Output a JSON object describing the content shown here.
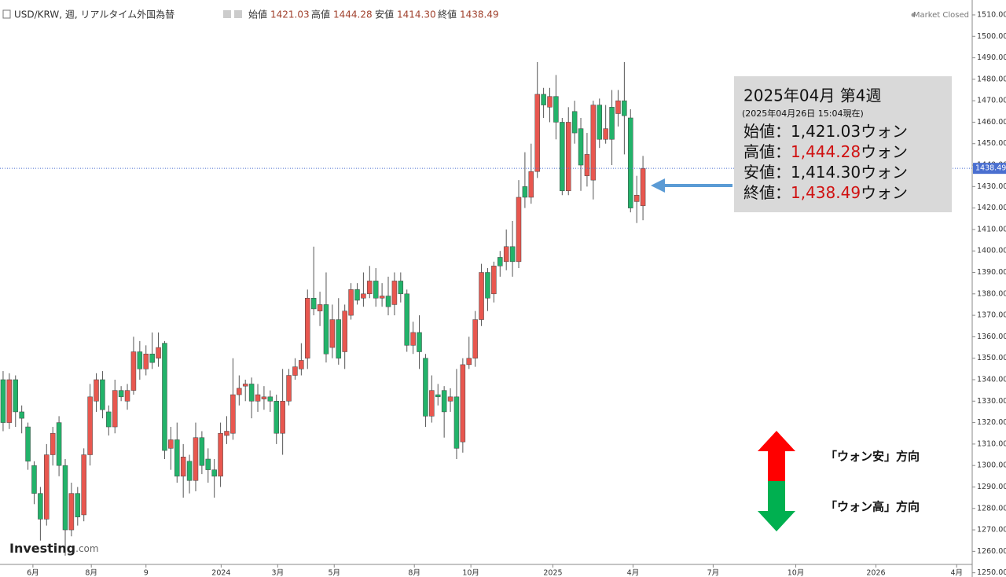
{
  "header": {
    "symbol": "USD/KRW, 週, リアルタイム外国為替",
    "open_label": "始値",
    "open": "1421.03",
    "high_label": "高値",
    "high": "1444.28",
    "low_label": "安値",
    "low": "1414.30",
    "close_label": "終値",
    "close": "1438.49",
    "status": "Market Closed"
  },
  "chart_data": {
    "type": "candlestick",
    "up_color": "#e8574f",
    "down_color": "#22b36a",
    "open": [
      1340,
      1320,
      1340,
      1325,
      1318,
      1300,
      1287,
      1275,
      1305,
      1320,
      1300,
      1270,
      1287,
      1277,
      1305,
      1330,
      1340,
      1325,
      1318,
      1335,
      1330,
      1335,
      1353,
      1345,
      1352,
      1350,
      1357,
      1308,
      1312,
      1295,
      1302,
      1293,
      1313,
      1303,
      1298,
      1295,
      1314,
      1315,
      1333,
      1337,
      1338,
      1330,
      1331,
      1332,
      1330,
      1315,
      1330,
      1342,
      1345,
      1350,
      1378,
      1372,
      1375,
      1355,
      1368,
      1353,
      1370,
      1382,
      1378,
      1380,
      1386,
      1378,
      1379,
      1375,
      1386,
      1380,
      1356,
      1362,
      1350,
      1323,
      1333,
      1335,
      1330,
      1332,
      1311,
      1347,
      1350,
      1368,
      1390,
      1380,
      1397,
      1395,
      1402,
      1395,
      1430,
      1425,
      1437,
      1473,
      1467,
      1472,
      1460,
      1428,
      1465,
      1457,
      1435,
      1433,
      1468,
      1452,
      1467,
      1464,
      1470,
      1462,
      1423,
      1421.03
    ],
    "high": [
      1344,
      1343,
      1342,
      1328,
      1320,
      1302,
      1290,
      1310,
      1318,
      1323,
      1303,
      1292,
      1290,
      1308,
      1338,
      1343,
      1344,
      1328,
      1340,
      1337,
      1338,
      1360,
      1358,
      1356,
      1362,
      1362,
      1358,
      1318,
      1320,
      1310,
      1305,
      1320,
      1316,
      1308,
      1303,
      1320,
      1323,
      1350,
      1342,
      1340,
      1341,
      1338,
      1337,
      1335,
      1333,
      1345,
      1345,
      1350,
      1357,
      1382,
      1402,
      1381,
      1390,
      1375,
      1378,
      1375,
      1385,
      1385,
      1390,
      1393,
      1392,
      1385,
      1388,
      1390,
      1390,
      1382,
      1367,
      1370,
      1352,
      1342,
      1338,
      1337,
      1336,
      1345,
      1350,
      1360,
      1372,
      1394,
      1392,
      1395,
      1400,
      1410,
      1414,
      1433,
      1446,
      1450,
      1488,
      1476,
      1476,
      1482,
      1462,
      1467,
      1470,
      1462,
      1455,
      1470,
      1471,
      1468,
      1475,
      1475,
      1488,
      1466,
      1435,
      1444.28
    ],
    "low": [
      1316,
      1317,
      1318,
      1315,
      1298,
      1282,
      1265,
      1272,
      1300,
      1295,
      1258,
      1267,
      1272,
      1274,
      1300,
      1325,
      1322,
      1314,
      1315,
      1330,
      1326,
      1333,
      1340,
      1342,
      1345,
      1346,
      1303,
      1298,
      1292,
      1285,
      1287,
      1288,
      1296,
      1292,
      1285,
      1290,
      1310,
      1312,
      1328,
      1330,
      1322,
      1325,
      1326,
      1325,
      1310,
      1305,
      1328,
      1340,
      1342,
      1345,
      1370,
      1365,
      1348,
      1350,
      1347,
      1345,
      1368,
      1375,
      1374,
      1378,
      1374,
      1374,
      1370,
      1370,
      1376,
      1353,
      1352,
      1345,
      1318,
      1320,
      1328,
      1313,
      1325,
      1303,
      1306,
      1345,
      1346,
      1365,
      1372,
      1376,
      1388,
      1391,
      1388,
      1392,
      1420,
      1422,
      1434,
      1462,
      1460,
      1452,
      1426,
      1426,
      1450,
      1428,
      1430,
      1424,
      1448,
      1450,
      1440,
      1458,
      1445,
      1418,
      1413,
      1414.3
    ],
    "close": [
      1320,
      1340,
      1325,
      1322,
      1302,
      1287,
      1275,
      1305,
      1315,
      1300,
      1270,
      1287,
      1276,
      1305,
      1332,
      1340,
      1326,
      1318,
      1335,
      1332,
      1335,
      1353,
      1345,
      1352,
      1348,
      1355,
      1307,
      1312,
      1295,
      1304,
      1293,
      1313,
      1300,
      1298,
      1295,
      1315,
      1316,
      1333,
      1336,
      1338,
      1330,
      1333,
      1332,
      1330,
      1315,
      1330,
      1342,
      1346,
      1349,
      1378,
      1373,
      1375,
      1352,
      1368,
      1350,
      1372,
      1382,
      1377,
      1380,
      1386,
      1378,
      1379,
      1374,
      1386,
      1380,
      1356,
      1362,
      1353,
      1323,
      1335,
      1332,
      1325,
      1332,
      1308,
      1347,
      1350,
      1368,
      1390,
      1378,
      1393,
      1393,
      1402,
      1395,
      1425,
      1425,
      1437,
      1473,
      1468,
      1472,
      1460,
      1428,
      1460,
      1455,
      1440,
      1445,
      1468,
      1452,
      1457,
      1452,
      1470,
      1463,
      1420,
      1426,
      1438.49
    ],
    "last_price_label": "1438.49",
    "ylim": [
      1245,
      1512
    ],
    "yticks": [
      {
        "value": 1250,
        "label": "1250.00"
      },
      {
        "value": 1260,
        "label": "1260.00"
      },
      {
        "value": 1270,
        "label": "1270.00"
      },
      {
        "value": 1280,
        "label": "1280.00"
      },
      {
        "value": 1290,
        "label": "1290.00"
      },
      {
        "value": 1300,
        "label": "1300.00"
      },
      {
        "value": 1310,
        "label": "1310.00"
      },
      {
        "value": 1320,
        "label": "1320.00"
      },
      {
        "value": 1330,
        "label": "1330.00"
      },
      {
        "value": 1340,
        "label": "1340.00"
      },
      {
        "value": 1350,
        "label": "1350.00"
      },
      {
        "value": 1360,
        "label": "1360.00"
      },
      {
        "value": 1370,
        "label": "1370.00"
      },
      {
        "value": 1380,
        "label": "1380.00"
      },
      {
        "value": 1390,
        "label": "1390.00"
      },
      {
        "value": 1400,
        "label": "1400.00"
      },
      {
        "value": 1410,
        "label": "1410.00"
      },
      {
        "value": 1420,
        "label": "1420.00"
      },
      {
        "value": 1430,
        "label": "1430.00"
      },
      {
        "value": 1440,
        "label": "1440.00"
      },
      {
        "value": 1450,
        "label": "1450.00"
      },
      {
        "value": 1460,
        "label": "1460.00"
      },
      {
        "value": 1470,
        "label": "1470.00"
      },
      {
        "value": 1480,
        "label": "1480.00"
      },
      {
        "value": 1490,
        "label": "1490.00"
      },
      {
        "value": 1500,
        "label": "1500.00"
      },
      {
        "value": 1510,
        "label": "1510.00"
      }
    ],
    "xlim": [
      -0.5,
      156
    ],
    "xticks": [
      {
        "value": 4.8,
        "label": "6月"
      },
      {
        "value": 14.2,
        "label": "8月"
      },
      {
        "value": 23.0,
        "label": "9"
      },
      {
        "value": 35.1,
        "label": "2024"
      },
      {
        "value": 44.2,
        "label": "3月"
      },
      {
        "value": 53.3,
        "label": "5月"
      },
      {
        "value": 66.2,
        "label": "8月"
      },
      {
        "value": 75.3,
        "label": "10月"
      },
      {
        "value": 88.5,
        "label": "2025"
      },
      {
        "value": 101.4,
        "label": "4月"
      },
      {
        "value": 114.3,
        "label": "7月"
      },
      {
        "value": 127.6,
        "label": "10月"
      },
      {
        "value": 140.5,
        "label": "2026"
      },
      {
        "value": 153.5,
        "label": "4月"
      }
    ]
  },
  "box": {
    "title": "2025年04月 第4週",
    "subtitle": "(2025年04月26日 15:04現在)",
    "unit": "ウォン",
    "rows": [
      {
        "label": "始値：",
        "value": "1,421.03",
        "color": "#111111"
      },
      {
        "label": "高値：",
        "value": "1,444.28",
        "color": "#d01010"
      },
      {
        "label": "安値：",
        "value": "1,414.30",
        "color": "#111111"
      },
      {
        "label": "終値：",
        "value": "1,438.49",
        "color": "#d01010"
      }
    ]
  },
  "annotations": {
    "up": "「ウォン安」方向",
    "down": "「ウォン高」方向"
  },
  "logo": {
    "name": "Investing",
    "suffix": ".com"
  }
}
